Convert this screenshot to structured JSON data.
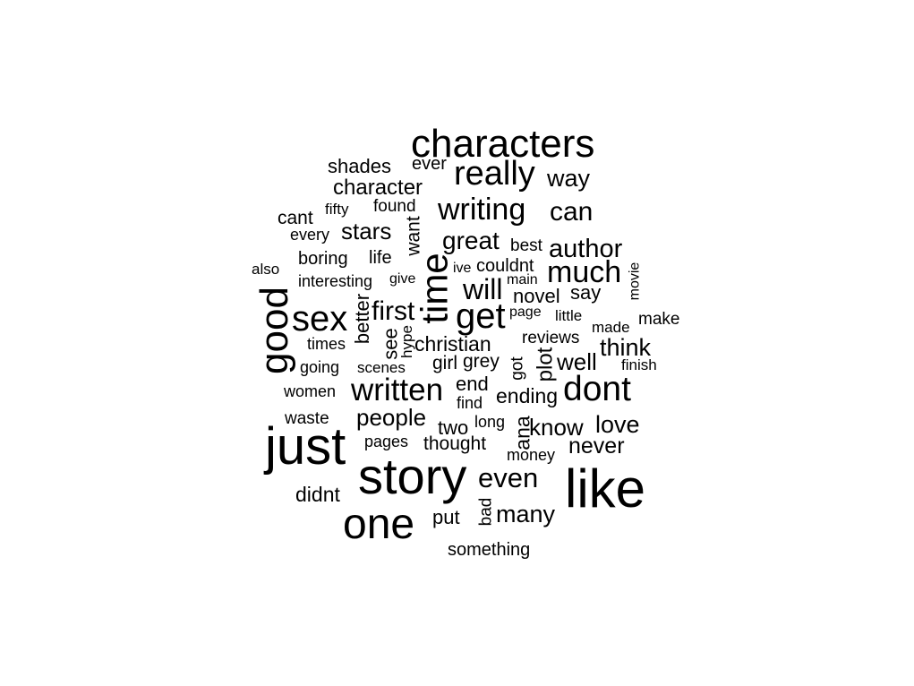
{
  "words": {
    "characters": "characters",
    "really": "really",
    "shades": "shades",
    "ever": "ever",
    "way": "way",
    "character": "character",
    "writing": "writing",
    "can": "can",
    "fifty": "fifty",
    "found": "found",
    "cant": "cant",
    "want": "want",
    "every": "every",
    "stars": "stars",
    "great": "great",
    "best": "best",
    "author": "author",
    "boring": "boring",
    "life": "life",
    "also": "also",
    "time": "time",
    "ive": "ive",
    "couldnt": "couldnt",
    "much": "much",
    "movie": "movie",
    "interesting": "interesting",
    "give": "give",
    "will": "will",
    "main": "main",
    "novel": "novel",
    "say": "say",
    "good": "good",
    "sex": "sex",
    "better": "better",
    "first": "first",
    "get": "get",
    "page": "page",
    "little": "little",
    "made": "made",
    "make": "make",
    "times": "times",
    "see": "see",
    "hype": "hype",
    "christian": "christian",
    "reviews": "reviews",
    "think": "think",
    "going": "going",
    "scenes": "scenes",
    "girl": "girl",
    "grey": "grey",
    "got": "got",
    "plot": "plot",
    "well": "well",
    "finish": "finish",
    "women": "women",
    "written": "written",
    "end": "end",
    "dont": "dont",
    "find": "find",
    "ending": "ending",
    "waste": "waste",
    "people": "people",
    "long": "long",
    "two": "two",
    "ana": "ana",
    "know": "know",
    "love": "love",
    "just": "just",
    "pages": "pages",
    "thought": "thought",
    "never": "never",
    "money": "money",
    "story": "story",
    "even": "even",
    "like": "like",
    "didnt": "didnt",
    "one": "one",
    "put": "put",
    "bad": "bad",
    "many": "many",
    "something": "something"
  }
}
